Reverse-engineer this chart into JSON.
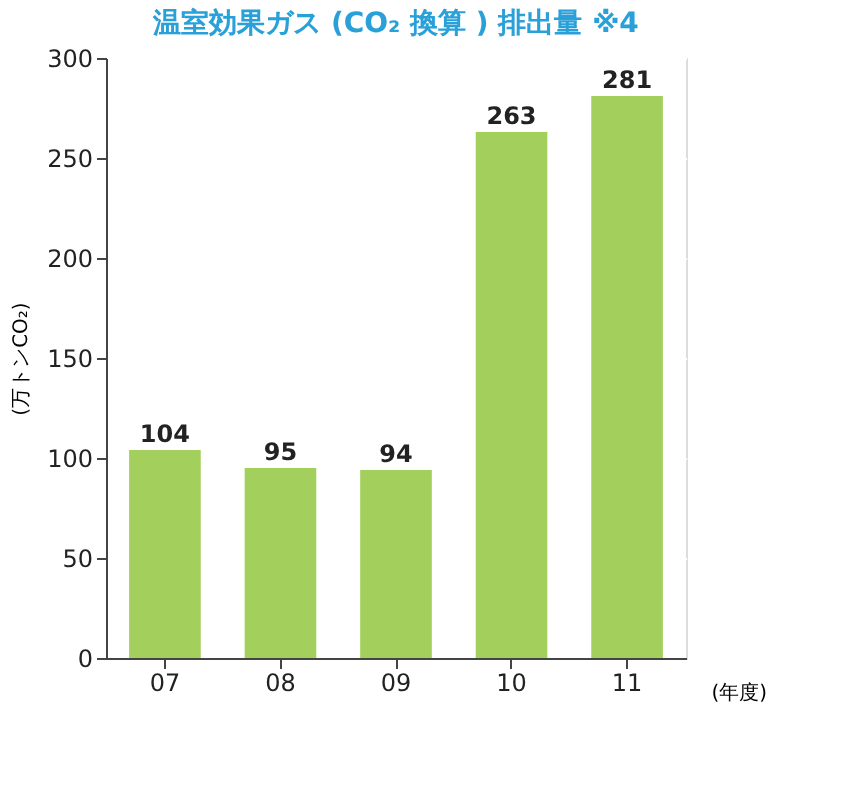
{
  "chart_data": {
    "type": "bar",
    "title": "温室効果ガス (CO₂ 換算 ) 排出量  ※4",
    "categories": [
      "07",
      "08",
      "09",
      "10",
      "11"
    ],
    "values": [
      104,
      95,
      94,
      263,
      281
    ],
    "color": "#a3cf5d",
    "xlabel": "(年度)",
    "ylabel": "(万トンCO₂)",
    "ylim": [
      0,
      300
    ],
    "yticks": [
      0,
      50,
      100,
      150,
      200,
      250,
      300
    ],
    "grid": "y",
    "data_labels": true
  }
}
